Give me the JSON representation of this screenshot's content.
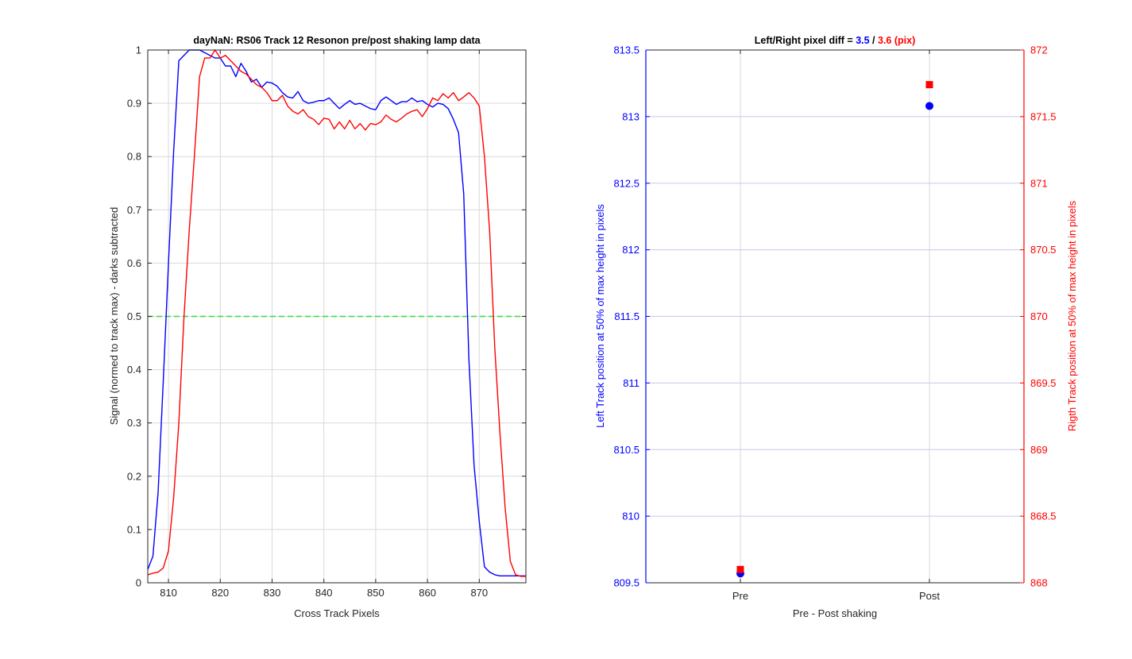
{
  "chart_data": [
    {
      "type": "line",
      "title": "dayNaN: RS06  Track 12 Resonon pre/post shaking lamp data",
      "xlabel": "Cross Track Pixels",
      "ylabel": "Signal (normed to track max) - darks subtracted",
      "xlim": [
        806,
        879
      ],
      "ylim": [
        0,
        1
      ],
      "xticks": [
        810,
        820,
        830,
        840,
        850,
        860,
        870
      ],
      "yticks": [
        0,
        0.1,
        0.2,
        0.3,
        0.4,
        0.5,
        0.6,
        0.7,
        0.8,
        0.9,
        1
      ],
      "ytick_labels": [
        "0",
        "0.1",
        "0.2",
        "0.3",
        "0.4",
        "0.5",
        "0.6",
        "0.7",
        "0.8",
        "0.9",
        "1"
      ],
      "grid": true,
      "colors": {
        "series_pre": "#0000ff",
        "series_post": "#ff0000",
        "reference": "#33dd33"
      },
      "reference_line": {
        "y": 0.5,
        "style": "dashed"
      },
      "series": [
        {
          "color": "#0000ff",
          "x": [
            806,
            807,
            808,
            809,
            810,
            811,
            812,
            813,
            814,
            815,
            816,
            817,
            818,
            819,
            820,
            821,
            822,
            823,
            824,
            825,
            826,
            827,
            828,
            829,
            830,
            831,
            832,
            833,
            834,
            835,
            836,
            837,
            838,
            839,
            840,
            841,
            842,
            843,
            844,
            845,
            846,
            847,
            848,
            849,
            850,
            851,
            852,
            853,
            854,
            855,
            856,
            857,
            858,
            859,
            860,
            861,
            862,
            863,
            864,
            865,
            866,
            867,
            868,
            869,
            870,
            871,
            872,
            873,
            874,
            875,
            876,
            877,
            878,
            879
          ],
          "y": [
            0.025,
            0.05,
            0.17,
            0.38,
            0.6,
            0.81,
            0.98,
            0.99,
            1.0,
            1.0,
            1.0,
            0.995,
            0.99,
            0.985,
            0.985,
            0.97,
            0.97,
            0.95,
            0.975,
            0.96,
            0.94,
            0.945,
            0.93,
            0.94,
            0.938,
            0.932,
            0.92,
            0.912,
            0.91,
            0.922,
            0.905,
            0.9,
            0.902,
            0.905,
            0.905,
            0.91,
            0.9,
            0.89,
            0.898,
            0.905,
            0.898,
            0.9,
            0.895,
            0.89,
            0.888,
            0.905,
            0.912,
            0.905,
            0.898,
            0.903,
            0.903,
            0.91,
            0.903,
            0.905,
            0.898,
            0.893,
            0.9,
            0.898,
            0.89,
            0.87,
            0.845,
            0.73,
            0.42,
            0.22,
            0.115,
            0.03,
            0.02,
            0.015,
            0.013,
            0.013,
            0.013,
            0.013,
            0.013,
            0.013
          ]
        },
        {
          "color": "#ff0000",
          "x": [
            806,
            807,
            808,
            809,
            810,
            811,
            812,
            813,
            814,
            815,
            816,
            817,
            818,
            819,
            820,
            821,
            822,
            823,
            824,
            825,
            826,
            827,
            828,
            829,
            830,
            831,
            832,
            833,
            834,
            835,
            836,
            837,
            838,
            839,
            840,
            841,
            842,
            843,
            844,
            845,
            846,
            847,
            848,
            849,
            850,
            851,
            852,
            853,
            854,
            855,
            856,
            857,
            858,
            859,
            860,
            861,
            862,
            863,
            864,
            865,
            866,
            867,
            868,
            869,
            870,
            871,
            872,
            873,
            874,
            875,
            876,
            877,
            878,
            879
          ],
          "y": [
            0.015,
            0.018,
            0.02,
            0.028,
            0.06,
            0.16,
            0.3,
            0.5,
            0.66,
            0.8,
            0.95,
            0.985,
            0.985,
            1.0,
            0.985,
            0.99,
            0.98,
            0.97,
            0.96,
            0.955,
            0.945,
            0.935,
            0.93,
            0.92,
            0.905,
            0.905,
            0.915,
            0.895,
            0.885,
            0.88,
            0.888,
            0.875,
            0.87,
            0.86,
            0.872,
            0.87,
            0.852,
            0.865,
            0.852,
            0.868,
            0.852,
            0.862,
            0.85,
            0.862,
            0.86,
            0.865,
            0.878,
            0.87,
            0.865,
            0.872,
            0.88,
            0.885,
            0.888,
            0.875,
            0.89,
            0.91,
            0.905,
            0.918,
            0.91,
            0.92,
            0.905,
            0.912,
            0.92,
            0.91,
            0.895,
            0.8,
            0.66,
            0.44,
            0.28,
            0.14,
            0.04,
            0.015,
            0.012,
            0.012
          ]
        }
      ]
    },
    {
      "type": "scatter",
      "title_parts": [
        {
          "text": "Left/Right pixel diff = ",
          "color": "#000000"
        },
        {
          "text": "3.5",
          "color": "#0000ff"
        },
        {
          "text": " / ",
          "color": "#000000"
        },
        {
          "text": "3.6 (pix)",
          "color": "#ff0000"
        }
      ],
      "xlabel": "Pre - Post shaking",
      "categories": [
        "Pre",
        "Post"
      ],
      "xlim": [
        0.5,
        2.5
      ],
      "grid": true,
      "y_left": {
        "label": "Left Track position at 50% of max height in pixels",
        "color": "#0000ff",
        "lim": [
          809.5,
          813.5
        ],
        "ticks": [
          809.5,
          810,
          810.5,
          811,
          811.5,
          812,
          812.5,
          813,
          813.5
        ],
        "tick_labels": [
          "809.5",
          "810",
          "810.5",
          "811",
          "811.5",
          "812",
          "812.5",
          "813",
          "813.5"
        ]
      },
      "y_right": {
        "label": "Rigth Track position at 50% of max height in pixels",
        "color": "#ff0000",
        "lim": [
          868,
          872
        ],
        "ticks": [
          868,
          868.5,
          869,
          869.5,
          870,
          870.5,
          871,
          871.5,
          872
        ],
        "tick_labels": [
          "868",
          "868.5",
          "869",
          "869.5",
          "870",
          "870.5",
          "871",
          "871.5",
          "872"
        ]
      },
      "series": [
        {
          "axis": "left",
          "marker": "circle",
          "color": "#0000ff",
          "values": [
            809.57,
            813.08
          ]
        },
        {
          "axis": "right",
          "marker": "square",
          "color": "#ff0000",
          "values": [
            868.1,
            871.74
          ]
        }
      ]
    }
  ]
}
